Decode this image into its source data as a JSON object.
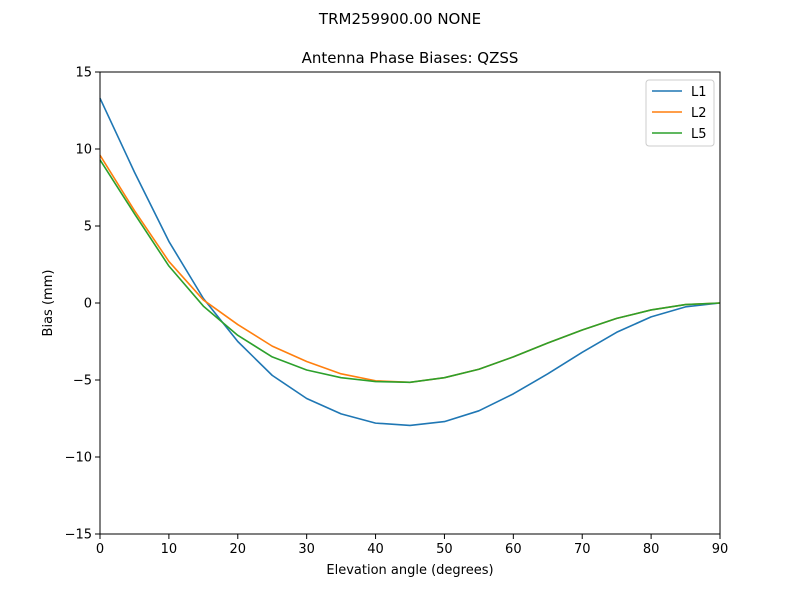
{
  "figure": {
    "suptitle": "TRM259900.00    NONE"
  },
  "chart_data": {
    "type": "line",
    "title": "Antenna Phase Biases: QZSS",
    "xlabel": "Elevation angle (degrees)",
    "ylabel": "Bias (mm)",
    "xlim": [
      0,
      90
    ],
    "ylim": [
      -15,
      15
    ],
    "xticks": [
      0,
      10,
      20,
      30,
      40,
      50,
      60,
      70,
      80,
      90
    ],
    "yticks": [
      -15,
      -10,
      -5,
      0,
      5,
      10,
      15
    ],
    "grid": false,
    "legend_position": "top-right",
    "x": [
      0,
      5,
      10,
      15,
      20,
      25,
      30,
      35,
      40,
      45,
      50,
      55,
      60,
      65,
      70,
      75,
      80,
      85,
      90
    ],
    "series": [
      {
        "name": "L1",
        "color": "#1f77b4",
        "values": [
          13.3,
          8.5,
          4.0,
          0.3,
          -2.5,
          -4.7,
          -6.2,
          -7.2,
          -7.8,
          -7.95,
          -7.7,
          -7.0,
          -5.9,
          -4.6,
          -3.2,
          -1.9,
          -0.9,
          -0.25,
          0.0
        ]
      },
      {
        "name": "L2",
        "color": "#ff7f0e",
        "values": [
          9.6,
          6.0,
          2.7,
          0.2,
          -1.4,
          -2.8,
          -3.8,
          -4.6,
          -5.05,
          -5.15,
          -4.85,
          -4.3,
          -3.5,
          -2.6,
          -1.75,
          -1.0,
          -0.45,
          -0.1,
          0.0
        ]
      },
      {
        "name": "L5",
        "color": "#2ca02c",
        "values": [
          9.3,
          5.8,
          2.4,
          -0.2,
          -2.1,
          -3.5,
          -4.35,
          -4.85,
          -5.1,
          -5.15,
          -4.85,
          -4.3,
          -3.5,
          -2.6,
          -1.75,
          -1.0,
          -0.45,
          -0.1,
          0.0
        ]
      }
    ]
  }
}
